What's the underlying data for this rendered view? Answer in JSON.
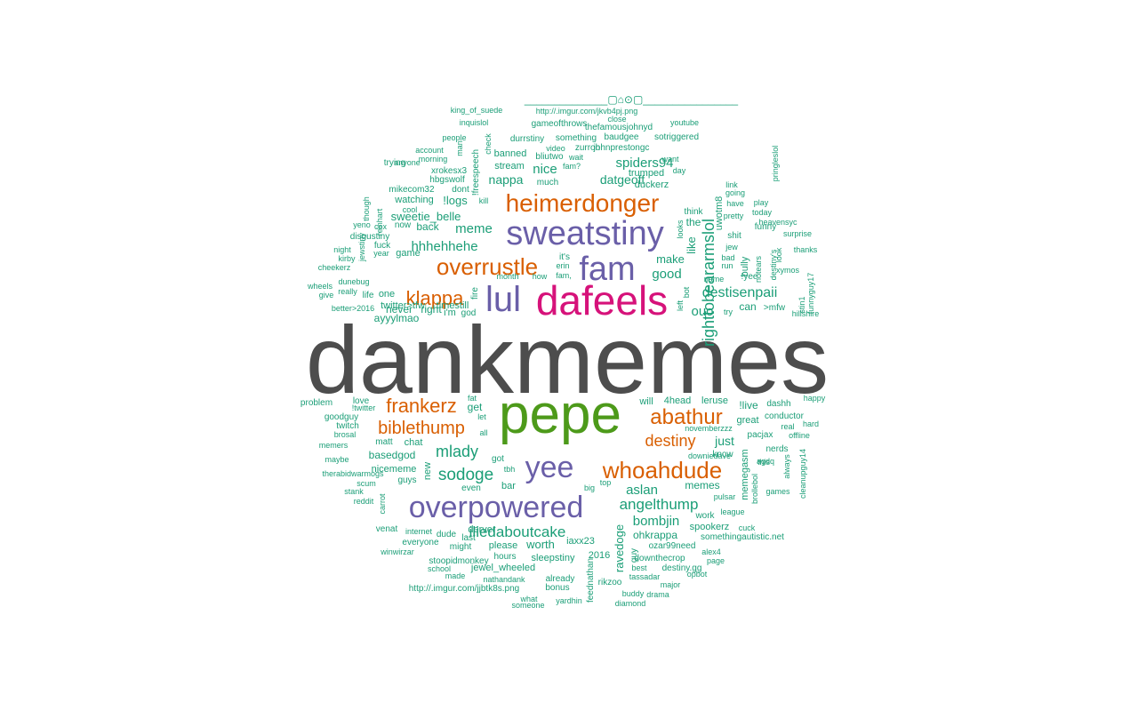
{
  "colors": {
    "green": "#1b9e77",
    "orange": "#d95f02",
    "purple": "#6a5fa8",
    "magenta": "#d6127a",
    "lime": "#4d9a1a",
    "gray": "#4d4d4d"
  },
  "words": [
    {
      "t": "dankmemes",
      "c": "gray"
    },
    {
      "t": "pepe",
      "c": "lime"
    },
    {
      "t": "dafeels",
      "c": "magenta"
    },
    {
      "t": "sweatstiny",
      "c": "purple"
    },
    {
      "t": "fam",
      "c": "purple"
    },
    {
      "t": "lul",
      "c": "purple"
    },
    {
      "t": "overpowered",
      "c": "purple"
    },
    {
      "t": "yee",
      "c": "purple"
    },
    {
      "t": "heimerdonger",
      "c": "orange"
    },
    {
      "t": "overrustle",
      "c": "orange"
    },
    {
      "t": "whoahdude",
      "c": "orange"
    },
    {
      "t": "abathur",
      "c": "orange"
    },
    {
      "t": "klappa",
      "c": "orange"
    },
    {
      "t": "frankerz",
      "c": "orange"
    },
    {
      "t": "biblethump",
      "c": "orange"
    },
    {
      "t": "destiny",
      "c": "orange"
    },
    {
      "t": "righttobeararmslol",
      "c": "green"
    },
    {
      "t": "destisenpaii",
      "c": "green"
    },
    {
      "t": "iliedaboutcake",
      "c": "green"
    },
    {
      "t": "sodoge",
      "c": "green"
    },
    {
      "t": "mlady",
      "c": "green"
    },
    {
      "t": "angelthump",
      "c": "green"
    },
    {
      "t": "aslan",
      "c": "green"
    },
    {
      "t": "bombjin",
      "c": "green"
    },
    {
      "t": "hhhehhehe",
      "c": "green"
    },
    {
      "t": "spiders94",
      "c": "green"
    },
    {
      "t": "datgeoff",
      "c": "green"
    },
    {
      "t": "nappa",
      "c": "green"
    },
    {
      "t": "nice",
      "c": "green"
    },
    {
      "t": "meme",
      "c": "green"
    },
    {
      "t": "sweetie_belle",
      "c": "green"
    },
    {
      "t": "!logs",
      "c": "green"
    },
    {
      "t": "good",
      "c": "green"
    },
    {
      "t": "make",
      "c": "green"
    },
    {
      "t": "ouo",
      "c": "green"
    },
    {
      "t": "like",
      "c": "green"
    },
    {
      "t": "just",
      "c": "green"
    },
    {
      "t": "memes",
      "c": "green"
    },
    {
      "t": "basedgod",
      "c": "green"
    },
    {
      "t": "nicememe",
      "c": "green"
    },
    {
      "t": "ravedoge",
      "c": "green"
    },
    {
      "t": "ohkrappa",
      "c": "green"
    },
    {
      "t": "worth",
      "c": "green"
    },
    {
      "t": "sleepstiny",
      "c": "green"
    },
    {
      "t": "jewel_wheeled",
      "c": "green"
    },
    {
      "t": "stoopidmonkey",
      "c": "green"
    },
    {
      "t": "ayyylmao",
      "c": "green"
    },
    {
      "t": "twitter>tfw",
      "c": "green"
    },
    {
      "t": "timestill",
      "c": "green"
    },
    {
      "t": "duckerz",
      "c": "green"
    },
    {
      "t": "trumped",
      "c": "green"
    },
    {
      "t": "uwotm8",
      "c": "green"
    },
    {
      "t": "the",
      "c": "green"
    },
    {
      "t": "think",
      "c": "green"
    },
    {
      "t": "memegasm",
      "c": "green"
    },
    {
      "t": "novemberzzz",
      "c": "green"
    },
    {
      "t": "downiedave",
      "c": "green"
    },
    {
      "t": "4head",
      "c": "green"
    },
    {
      "t": "leruse",
      "c": "green"
    },
    {
      "t": "!live",
      "c": "green"
    },
    {
      "t": "great",
      "c": "green"
    },
    {
      "t": "pacjax",
      "c": "green"
    },
    {
      "t": "will",
      "c": "green"
    },
    {
      "t": "get",
      "c": "green"
    },
    {
      "t": "chat",
      "c": "green"
    },
    {
      "t": "matt",
      "c": "green"
    },
    {
      "t": "new",
      "c": "green"
    },
    {
      "t": "even",
      "c": "green"
    },
    {
      "t": "bar",
      "c": "green"
    },
    {
      "t": "got",
      "c": "green"
    },
    {
      "t": "tbh",
      "c": "green"
    },
    {
      "t": "big",
      "c": "green"
    },
    {
      "t": "top",
      "c": "green"
    },
    {
      "t": "guys",
      "c": "green"
    },
    {
      "t": "derver",
      "c": "green"
    },
    {
      "t": "dude",
      "c": "green"
    },
    {
      "t": "last",
      "c": "green"
    },
    {
      "t": "might",
      "c": "green"
    },
    {
      "t": "please",
      "c": "green"
    },
    {
      "t": "hours",
      "c": "green"
    },
    {
      "t": "iaxx23",
      "c": "green"
    },
    {
      "t": "2016",
      "c": "green"
    },
    {
      "t": "guy",
      "c": "green"
    },
    {
      "t": "ozar99need",
      "c": "green"
    },
    {
      "t": "downthecrop",
      "c": "green"
    },
    {
      "t": "destiny.gg",
      "c": "green"
    },
    {
      "t": "spookerz",
      "c": "green"
    },
    {
      "t": "somethingautistic.net",
      "c": "green"
    },
    {
      "t": "pulsar",
      "c": "green"
    },
    {
      "t": "work",
      "c": "green"
    },
    {
      "t": "league",
      "c": "green"
    },
    {
      "t": "know",
      "c": "green"
    },
    {
      "t": "can",
      "c": "green"
    },
    {
      "t": ">mfw",
      "c": "green"
    },
    {
      "t": "try",
      "c": "green"
    },
    {
      "t": "name",
      "c": "green"
    },
    {
      "t": "!yee",
      "c": "green"
    },
    {
      "t": "run",
      "c": "green"
    },
    {
      "t": "bad",
      "c": "green"
    },
    {
      "t": "jew",
      "c": "green"
    },
    {
      "t": "shit",
      "c": "green"
    },
    {
      "t": "pretty",
      "c": "green"
    },
    {
      "t": "have",
      "c": "green"
    },
    {
      "t": "going",
      "c": "green"
    },
    {
      "t": "link",
      "c": "green"
    },
    {
      "t": "funny",
      "c": "green"
    },
    {
      "t": "bully",
      "c": "green"
    },
    {
      "t": "notears",
      "c": "green"
    },
    {
      "t": "destiny's",
      "c": "green"
    },
    {
      "t": "look",
      "c": "green"
    },
    {
      "t": "play",
      "c": "green"
    },
    {
      "t": "today",
      "c": "green"
    },
    {
      "t": "heavensyc",
      "c": "green"
    },
    {
      "t": "surprise",
      "c": "green"
    },
    {
      "t": "thanks",
      "c": "green"
    },
    {
      "t": "xymos",
      "c": "green"
    },
    {
      "t": "pringleslol",
      "c": "green"
    },
    {
      "t": "stin1",
      "c": "green"
    },
    {
      "t": "funnyguy17",
      "c": "green"
    },
    {
      "t": "hillshire",
      "c": "green"
    },
    {
      "t": "looks",
      "c": "green"
    },
    {
      "t": "left",
      "c": "green"
    },
    {
      "t": "bot",
      "c": "green"
    },
    {
      "t": "want",
      "c": "green"
    },
    {
      "t": "day",
      "c": "green"
    },
    {
      "t": "sotriggered",
      "c": "green"
    },
    {
      "t": "youtube",
      "c": "green"
    },
    {
      "t": "baudgee",
      "c": "green"
    },
    {
      "t": "johnprestongc",
      "c": "green"
    },
    {
      "t": "zurroh",
      "c": "green"
    },
    {
      "t": "something",
      "c": "green"
    },
    {
      "t": "thefamousjohnyd",
      "c": "green"
    },
    {
      "t": "durrstiny",
      "c": "green"
    },
    {
      "t": "gameofthrows",
      "c": "green"
    },
    {
      "t": "close",
      "c": "green"
    },
    {
      "t": "http://.imgur.com/jkvb4pj.png",
      "c": "green"
    },
    {
      "t": "king_of_suede",
      "c": "green"
    },
    {
      "t": "inquislol",
      "c": "green"
    },
    {
      "t": "people",
      "c": "green"
    },
    {
      "t": "man",
      "c": "green"
    },
    {
      "t": "check",
      "c": "green"
    },
    {
      "t": "account",
      "c": "green"
    },
    {
      "t": "morning",
      "c": "green"
    },
    {
      "t": "xrokesx3",
      "c": "green"
    },
    {
      "t": "hbgswolf",
      "c": "green"
    },
    {
      "t": "anyone",
      "c": "green"
    },
    {
      "t": "trying",
      "c": "green"
    },
    {
      "t": "banned",
      "c": "green"
    },
    {
      "t": "stream",
      "c": "green"
    },
    {
      "t": "bliutwo",
      "c": "green"
    },
    {
      "t": "video",
      "c": "green"
    },
    {
      "t": "wait",
      "c": "green"
    },
    {
      "t": "fam?",
      "c": "green"
    },
    {
      "t": "much",
      "c": "green"
    },
    {
      "t": "!freespeech",
      "c": "green"
    },
    {
      "t": "dont",
      "c": "green"
    },
    {
      "t": "mikecom32",
      "c": "green"
    },
    {
      "t": "watching",
      "c": "green"
    },
    {
      "t": "cool",
      "c": "green"
    },
    {
      "t": "kill",
      "c": "green"
    },
    {
      "t": "though",
      "c": "green"
    },
    {
      "t": "reinhart",
      "c": "green"
    },
    {
      "t": "yeno",
      "c": "green"
    },
    {
      "t": "cox",
      "c": "green"
    },
    {
      "t": "now",
      "c": "green"
    },
    {
      "t": "back",
      "c": "green"
    },
    {
      "t": "disgustiny",
      "c": "green"
    },
    {
      "t": "fuck",
      "c": "green"
    },
    {
      "t": "night",
      "c": "green"
    },
    {
      "t": "kirby",
      "c": "green"
    },
    {
      "t": "jewstiny",
      "c": "green"
    },
    {
      "t": "year",
      "c": "green"
    },
    {
      "t": "game",
      "c": "green"
    },
    {
      "t": "cheekerz",
      "c": "green"
    },
    {
      "t": "dunebug",
      "c": "green"
    },
    {
      "t": "wheels",
      "c": "green"
    },
    {
      "t": "give",
      "c": "green"
    },
    {
      "t": "really",
      "c": "green"
    },
    {
      "t": "life",
      "c": "green"
    },
    {
      "t": "one",
      "c": "green"
    },
    {
      "t": "better>2016",
      "c": "green"
    },
    {
      "t": "never",
      "c": "green"
    },
    {
      "t": "right",
      "c": "green"
    },
    {
      "t": "i'm",
      "c": "green"
    },
    {
      "t": "god",
      "c": "green"
    },
    {
      "t": "fire",
      "c": "green"
    },
    {
      "t": "month",
      "c": "green"
    },
    {
      "t": "how",
      "c": "green"
    },
    {
      "t": "fam,",
      "c": "green"
    },
    {
      "t": "it's",
      "c": "green"
    },
    {
      "t": "erin",
      "c": "green"
    },
    {
      "t": "love",
      "c": "green"
    },
    {
      "t": "problem",
      "c": "green"
    },
    {
      "t": "!twitter",
      "c": "green"
    },
    {
      "t": "goodguy",
      "c": "green"
    },
    {
      "t": "twitch",
      "c": "green"
    },
    {
      "t": "brosal",
      "c": "green"
    },
    {
      "t": "memers",
      "c": "green"
    },
    {
      "t": "maybe",
      "c": "green"
    },
    {
      "t": "therabidwarmogs",
      "c": "green"
    },
    {
      "t": "scum",
      "c": "green"
    },
    {
      "t": "stank",
      "c": "green"
    },
    {
      "t": "reddit",
      "c": "green"
    },
    {
      "t": "carrot",
      "c": "green"
    },
    {
      "t": "fat",
      "c": "green"
    },
    {
      "t": "let",
      "c": "green"
    },
    {
      "t": "all",
      "c": "green"
    },
    {
      "t": "venat",
      "c": "green"
    },
    {
      "t": "internet",
      "c": "green"
    },
    {
      "t": "everyone",
      "c": "green"
    },
    {
      "t": "winwirzar",
      "c": "green"
    },
    {
      "t": "school",
      "c": "green"
    },
    {
      "t": "made",
      "c": "green"
    },
    {
      "t": "nathandank",
      "c": "green"
    },
    {
      "t": "http://.imgur.com/jjbtk8s.png",
      "c": "green"
    },
    {
      "t": "already",
      "c": "green"
    },
    {
      "t": "bonus",
      "c": "green"
    },
    {
      "t": "what",
      "c": "green"
    },
    {
      "t": "someone",
      "c": "green"
    },
    {
      "t": "yardhin",
      "c": "green"
    },
    {
      "t": "feednathan",
      "c": "green"
    },
    {
      "t": "rikzoo",
      "c": "green"
    },
    {
      "t": "buddy",
      "c": "green"
    },
    {
      "t": "diamond",
      "c": "green"
    },
    {
      "t": "drama",
      "c": "green"
    },
    {
      "t": "major",
      "c": "green"
    },
    {
      "t": "opbot",
      "c": "green"
    },
    {
      "t": "page",
      "c": "green"
    },
    {
      "t": "alex4",
      "c": "green"
    },
    {
      "t": "best",
      "c": "green"
    },
    {
      "t": "tassadar",
      "c": "green"
    },
    {
      "t": "cuck",
      "c": "green"
    },
    {
      "t": "games",
      "c": "green"
    },
    {
      "t": "brollebol",
      "c": "green"
    },
    {
      "t": "always",
      "c": "green"
    },
    {
      "t": "cleanupguy14",
      "c": "green"
    },
    {
      "t": "nerds",
      "c": "green"
    },
    {
      "t": "this",
      "c": "green"
    },
    {
      "t": "agdq",
      "c": "green"
    },
    {
      "t": "hard",
      "c": "green"
    },
    {
      "t": "offline",
      "c": "green"
    },
    {
      "t": "real",
      "c": "green"
    },
    {
      "t": "conductor",
      "c": "green"
    },
    {
      "t": "happy",
      "c": "green"
    },
    {
      "t": "dashh",
      "c": "green"
    },
    {
      "t": "______________▢⌂⊙▢________________",
      "c": "green"
    }
  ]
}
